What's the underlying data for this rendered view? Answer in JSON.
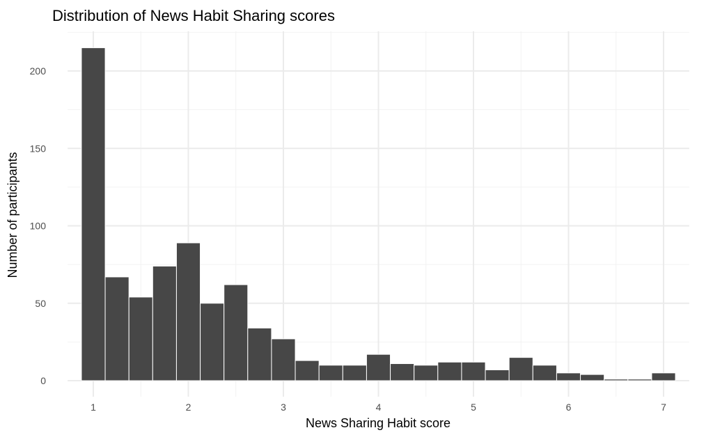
{
  "chart_data": {
    "type": "bar",
    "title": "Distribution of News Habit Sharing scores",
    "xlabel": "News Sharing Habit score",
    "ylabel": "Number of participants",
    "x": [
      1,
      1.25,
      1.5,
      1.75,
      2,
      2.25,
      2.5,
      2.75,
      3,
      3.25,
      3.5,
      3.75,
      4,
      4.25,
      4.5,
      4.75,
      5,
      5.25,
      5.5,
      5.75,
      6,
      6.25,
      6.5,
      6.75,
      7
    ],
    "values": [
      215,
      67,
      54,
      74,
      89,
      50,
      62,
      34,
      27,
      13,
      10,
      10,
      17,
      11,
      10,
      12,
      12,
      7,
      15,
      10,
      5,
      4,
      1,
      1,
      5
    ],
    "binwidth": 0.25,
    "xticks": [
      1,
      2,
      3,
      4,
      5,
      6,
      7
    ],
    "yticks": [
      0,
      50,
      100,
      150,
      200
    ],
    "xlim": [
      0.73,
      7.27
    ],
    "ylim": [
      0,
      225
    ],
    "grid": true,
    "bar_color": "#474747",
    "bar_outline": "#ffffff"
  }
}
